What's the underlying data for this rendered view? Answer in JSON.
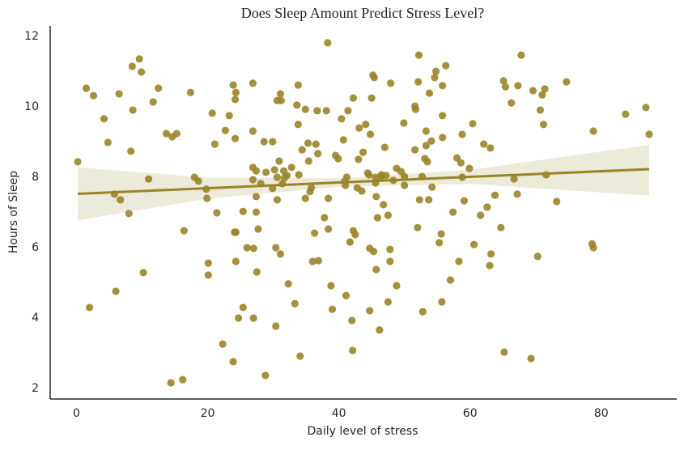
{
  "chart_data": {
    "type": "scatter",
    "title": "Does Sleep Amount Predict Stress Level?",
    "x_label": "Daily level of stress",
    "y_label": "Hours of Sleep",
    "color": "#9a8428",
    "x": [
      0.2,
      1.5,
      2,
      2.6,
      4.2,
      4.8,
      5.8,
      6,
      6.5,
      6.7,
      8,
      8.3,
      8.5,
      8.6,
      9.6,
      9.9,
      10.2,
      11,
      11.7,
      12.5,
      13.7,
      14.4,
      14.6,
      15.3,
      16.2,
      16.4,
      17.4,
      18,
      18.6,
      19.8,
      19.9,
      20.1,
      20.1,
      20.7,
      21.1,
      21.4,
      22.3,
      22.7,
      23.3,
      23.9,
      23.9,
      24.1,
      24.2,
      24.3,
      24.3,
      24.3,
      24.2,
      24.7,
      25.4,
      25.4,
      26,
      26.9,
      26.9,
      26.9,
      26.9,
      27,
      27,
      27.4,
      27.4,
      27.4,
      27.7,
      27.5,
      28.1,
      28.6,
      28.8,
      28.9,
      29.9,
      29.9,
      30.2,
      30.4,
      30.4,
      30.6,
      30.6,
      30.6,
      30.9,
      31.1,
      31.1,
      31.2,
      31.4,
      31.6,
      31.7,
      32.1,
      32.3,
      32.8,
      33.3,
      33.6,
      33.8,
      33.8,
      33.9,
      34.1,
      34.4,
      34.9,
      34.9,
      35.3,
      35.4,
      35.6,
      35.8,
      36,
      36.3,
      36.5,
      36.7,
      36.9,
      36.8,
      37.8,
      38.1,
      38.3,
      38.4,
      38.4,
      38.8,
      39,
      39.5,
      39.9,
      40.4,
      40.7,
      40.9,
      41,
      41.1,
      41.2,
      41.4,
      41.7,
      42,
      42.1,
      42.2,
      42.2,
      42.5,
      42.8,
      43,
      43.1,
      43.5,
      43.7,
      44.1,
      44.4,
      44.6,
      44.7,
      44.7,
      44.8,
      45,
      45.2,
      45.3,
      45.4,
      45.6,
      45.6,
      45.7,
      45.7,
      45.9,
      46.2,
      46.4,
      46.5,
      46.8,
      47,
      47.2,
      47.5,
      47.5,
      47.8,
      47.8,
      47.9,
      48.3,
      48.8,
      48.8,
      49.5,
      49.9,
      50,
      50,
      51.6,
      51.6,
      51.7,
      52,
      52.2,
      52.1,
      52.3,
      52.7,
      52.8,
      53.1,
      53.3,
      53.3,
      53.5,
      53.7,
      53.8,
      54.1,
      54.2,
      54.6,
      54.8,
      55.3,
      55.6,
      55.7,
      55.8,
      55.8,
      55.8,
      56.3,
      57,
      57.4,
      58,
      58.3,
      58.6,
      58.8,
      58.8,
      59.1,
      59.9,
      60.4,
      60.6,
      61.6,
      62.1,
      62.6,
      63,
      63.1,
      63.2,
      63.8,
      64.7,
      65.1,
      65.2,
      65.4,
      66.3,
      66.7,
      67.2,
      67.3,
      67.8,
      69.3,
      69.6,
      70.3,
      70.7,
      71,
      71.2,
      71.4,
      71.6,
      73.2,
      74.7,
      78.6,
      78.8,
      78.8,
      83.7,
      86.8,
      87.3
    ],
    "values": [
      8.44,
      10.53,
      4.3,
      10.32,
      9.66,
      8.99,
      7.52,
      4.76,
      10.37,
      7.36,
      6.97,
      8.74,
      11.15,
      9.91,
      11.36,
      10.99,
      5.29,
      7.95,
      10.14,
      10.53,
      9.24,
      2.16,
      9.15,
      9.24,
      2.25,
      6.48,
      10.41,
      8.0,
      7.89,
      7.66,
      7.4,
      5.56,
      5.22,
      9.82,
      8.94,
      6.99,
      3.26,
      9.33,
      9.75,
      10.62,
      2.76,
      6.44,
      10.21,
      10.41,
      6.44,
      5.61,
      9.1,
      4.0,
      7.03,
      4.3,
      6.0,
      10.67,
      9.31,
      8.28,
      7.93,
      4.0,
      5.98,
      8.18,
      7.45,
      7.01,
      6.53,
      5.31,
      7.82,
      9.01,
      2.37,
      8.14,
      9.01,
      7.68,
      8.21,
      3.77,
      6.0,
      10.18,
      8.0,
      7.36,
      8.46,
      5.82,
      10.37,
      10.18,
      7.82,
      8.18,
      7.98,
      8.05,
      4.97,
      8.28,
      4.41,
      10.05,
      9.5,
      10.62,
      8.07,
      2.92,
      8.78,
      9.93,
      7.4,
      8.97,
      8.46,
      7.59,
      7.7,
      5.61,
      6.41,
      8.94,
      9.89,
      5.63,
      8.67,
      6.85,
      9.89,
      11.82,
      7.4,
      6.53,
      4.92,
      4.25,
      8.62,
      8.53,
      9.66,
      9.06,
      7.89,
      7.77,
      4.64,
      8.0,
      9.89,
      6.16,
      3.93,
      3.08,
      10.25,
      6.48,
      6.37,
      7.7,
      8.51,
      9.4,
      7.61,
      8.71,
      9.5,
      8.12,
      8.07,
      5.98,
      4.21,
      9.22,
      10.25,
      10.9,
      5.89,
      10.83,
      7.84,
      8.0,
      7.45,
      5.38,
      6.85,
      3.66,
      8.0,
      8.07,
      7.22,
      8.85,
      8.05,
      4.46,
      6.92,
      5.61,
      5.95,
      10.67,
      7.91,
      4.92,
      8.25,
      8.16,
      9.54,
      8.02,
      7.77,
      10.02,
      8.78,
      9.93,
      6.57,
      11.47,
      10.71,
      7.36,
      8.02,
      4.18,
      8.53,
      8.9,
      9.31,
      8.44,
      7.36,
      10.39,
      9.03,
      7.72,
      10.83,
      11.01,
      6.14,
      6.39,
      4.46,
      10.6,
      9.75,
      9.13,
      11.17,
      5.08,
      7.01,
      8.55,
      5.61,
      8.41,
      9.22,
      8.0,
      7.33,
      8.25,
      9.52,
      6.09,
      6.92,
      8.94,
      7.15,
      5.49,
      8.83,
      5.82,
      7.49,
      6.57,
      10.74,
      3.03,
      10.57,
      10.11,
      7.95,
      7.52,
      10.6,
      11.47,
      2.85,
      10.46,
      5.75,
      9.91,
      10.34,
      9.5,
      10.51,
      8.07,
      7.31,
      10.71,
      6.11,
      9.31,
      6.0,
      9.79,
      9.98,
      9.22
    ],
    "regression": {
      "color": "#9a8428",
      "x": [
        0.2,
        87.3
      ],
      "y": [
        7.53,
        8.23
      ]
    },
    "band": {
      "color": "#ecead9",
      "x": [
        0.2,
        20,
        40,
        60,
        87.3
      ],
      "lower": [
        6.78,
        7.39,
        7.73,
        7.81,
        7.48
      ],
      "upper": [
        8.28,
        7.99,
        7.97,
        8.21,
        8.92
      ]
    },
    "xlim": [
      -4,
      91.5
    ],
    "xticks": [
      0,
      20,
      40,
      60,
      80
    ],
    "ylim": [
      1.7,
      12.3
    ],
    "yticks": [
      2,
      4,
      6,
      8,
      10,
      12
    ]
  }
}
